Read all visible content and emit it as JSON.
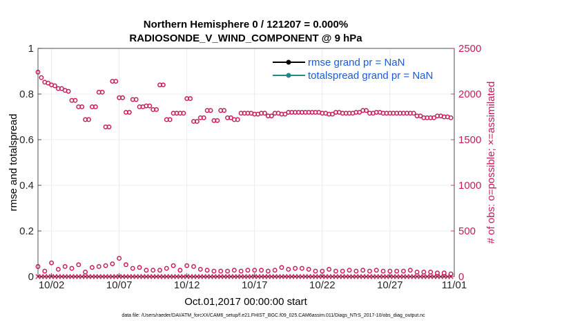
{
  "chart_data": {
    "type": "scatter",
    "title_line1": "Northern Hemisphere 0 / 121207 = 0.000%",
    "title_line2": "RADIOSONDE_V_WIND_COMPONENT @ 9 hPa",
    "ylabel_left": "rmse and totalspread",
    "ylabel_right": "# of obs: o=possible; ×=assimilated",
    "xlabel": "Oct.01,2017 00:00:00 start",
    "footnote": "data file: /Users/raeder/DAI/ATM_forcXX/CAM6_setup/f.e21.FHIST_BGC.f09_025.CAM6assim.011/Diags_NTrS_2017-10/obs_diag_output.nc",
    "ylim_left": [
      0,
      1
    ],
    "ylim_right": [
      0,
      2500
    ],
    "xlim_days": [
      0.5,
      31.25
    ],
    "left_ticks": [
      "0",
      "0.2",
      "0.4",
      "0.6",
      "0.8",
      "1"
    ],
    "left_tick_values": [
      0,
      0.2,
      0.4,
      0.6,
      0.8,
      1
    ],
    "right_ticks": [
      "0",
      "500",
      "1000",
      "1500",
      "2000",
      "2500"
    ],
    "right_tick_values": [
      0,
      500,
      1000,
      1500,
      2000,
      2500
    ],
    "x_ticks": [
      "10/02",
      "10/07",
      "10/12",
      "10/17",
      "10/22",
      "10/27",
      "11/01"
    ],
    "x_tick_days": [
      1.5,
      6.5,
      11.5,
      16.5,
      21.5,
      26.5,
      31.5
    ],
    "legend": [
      {
        "label": "rmse grand pr = NaN",
        "color": "#000000"
      },
      {
        "label": "totalspread grand pr = NaN",
        "color": "#1a8a8a"
      }
    ],
    "series": [
      {
        "name": "possible (large counts)",
        "marker": "circle",
        "color": "#c8195a",
        "x": [
          0.5,
          0.75,
          1.0,
          1.25,
          1.5,
          1.75,
          2.0,
          2.25,
          2.5,
          2.75,
          3.0,
          3.25,
          3.5,
          3.75,
          4.0,
          4.25,
          4.5,
          4.75,
          5.0,
          5.25,
          5.5,
          5.75,
          6.0,
          6.25,
          6.5,
          6.75,
          7.0,
          7.25,
          7.5,
          7.75,
          8.0,
          8.25,
          8.5,
          8.75,
          9.0,
          9.25,
          9.5,
          9.75,
          10.0,
          10.25,
          10.5,
          10.75,
          11.0,
          11.25,
          11.5,
          11.75,
          12.0,
          12.25,
          12.5,
          12.75,
          13.0,
          13.25,
          13.5,
          13.75,
          14.0,
          14.25,
          14.5,
          14.75,
          15.0,
          15.25,
          15.5,
          15.75,
          16.0,
          16.25,
          16.5,
          16.75,
          17.0,
          17.25,
          17.5,
          17.75,
          18.0,
          18.25,
          18.5,
          18.75,
          19.0,
          19.25,
          19.5,
          19.75,
          20.0,
          20.25,
          20.5,
          20.75,
          21.0,
          21.25,
          21.5,
          21.75,
          22.0,
          22.25,
          22.5,
          22.75,
          23.0,
          23.25,
          23.5,
          23.75,
          24.0,
          24.25,
          24.5,
          24.75,
          25.0,
          25.25,
          25.5,
          25.75,
          26.0,
          26.25,
          26.5,
          26.75,
          27.0,
          27.25,
          27.5,
          27.75,
          28.0,
          28.25,
          28.5,
          28.75,
          29.0,
          29.25,
          29.5,
          29.75,
          30.0,
          30.25,
          30.5,
          30.75,
          31.0
        ],
        "values": [
          2240,
          2180,
          2130,
          2120,
          2100,
          2090,
          2060,
          2060,
          2040,
          2030,
          1930,
          1930,
          1860,
          1860,
          1720,
          1720,
          1860,
          1860,
          2020,
          2020,
          1640,
          1640,
          2140,
          2140,
          1960,
          1960,
          1800,
          1800,
          1940,
          1940,
          1860,
          1860,
          1870,
          1870,
          1830,
          1830,
          2100,
          2100,
          1720,
          1720,
          1790,
          1790,
          1790,
          1790,
          1950,
          1950,
          1700,
          1700,
          1740,
          1740,
          1820,
          1820,
          1710,
          1710,
          1820,
          1820,
          1740,
          1740,
          1720,
          1720,
          1790,
          1790,
          1790,
          1790,
          1780,
          1780,
          1790,
          1790,
          1760,
          1760,
          1790,
          1790,
          1780,
          1780,
          1800,
          1800,
          1800,
          1800,
          1800,
          1800,
          1800,
          1800,
          1800,
          1800,
          1790,
          1790,
          1780,
          1780,
          1800,
          1800,
          1790,
          1790,
          1790,
          1790,
          1800,
          1800,
          1820,
          1820,
          1790,
          1790,
          1800,
          1800,
          1790,
          1790,
          1790,
          1790,
          1790,
          1790,
          1790,
          1790,
          1790,
          1790,
          1760,
          1760,
          1740,
          1740,
          1740,
          1740,
          1760,
          1760,
          1750,
          1750,
          1740
        ]
      },
      {
        "name": "possible (small counts)",
        "marker": "circle",
        "color": "#c8195a",
        "x": [
          0.5,
          1.0,
          1.5,
          2.0,
          2.5,
          3.0,
          3.5,
          4.0,
          4.5,
          5.0,
          5.5,
          6.0,
          6.5,
          7.0,
          7.5,
          8.0,
          8.5,
          9.0,
          9.5,
          10.0,
          10.5,
          11.0,
          11.5,
          12.0,
          12.5,
          13.0,
          13.5,
          14.0,
          14.5,
          15.0,
          15.5,
          16.0,
          16.5,
          17.0,
          17.5,
          18.0,
          18.5,
          19.0,
          19.5,
          20.0,
          20.5,
          21.0,
          21.5,
          22.0,
          22.5,
          23.0,
          23.5,
          24.0,
          24.5,
          25.0,
          25.5,
          26.0,
          26.5,
          27.0,
          27.5,
          28.0,
          28.5,
          29.0,
          29.5,
          30.0,
          30.5,
          31.0
        ],
        "values": [
          110,
          60,
          150,
          80,
          110,
          90,
          130,
          50,
          100,
          110,
          120,
          140,
          200,
          130,
          90,
          100,
          70,
          70,
          70,
          90,
          120,
          70,
          120,
          110,
          80,
          70,
          60,
          60,
          60,
          70,
          60,
          70,
          70,
          70,
          60,
          70,
          100,
          80,
          90,
          90,
          80,
          60,
          60,
          80,
          60,
          60,
          70,
          60,
          70,
          60,
          70,
          60,
          60,
          60,
          60,
          70,
          50,
          50,
          50,
          40,
          40,
          30
        ]
      },
      {
        "name": "assimilated",
        "marker": "cross",
        "color": "#c8195a",
        "x": [
          0.5,
          0.75,
          1.0,
          1.25,
          1.5,
          1.75,
          2.0,
          2.25,
          2.5,
          2.75,
          3.0,
          3.25,
          3.5,
          3.75,
          4.0,
          4.25,
          4.5,
          4.75,
          5.0,
          5.25,
          5.5,
          5.75,
          6.0,
          6.25,
          6.5,
          6.75,
          7.0,
          7.25,
          7.5,
          7.75,
          8.0,
          8.25,
          8.5,
          8.75,
          9.0,
          9.25,
          9.5,
          9.75,
          10.0,
          10.25,
          10.5,
          10.75,
          11.0,
          11.25,
          11.5,
          11.75,
          12.0,
          12.25,
          12.5,
          12.75,
          13.0,
          13.25,
          13.5,
          13.75,
          14.0,
          14.25,
          14.5,
          14.75,
          15.0,
          15.25,
          15.5,
          15.75,
          16.0,
          16.25,
          16.5,
          16.75,
          17.0,
          17.25,
          17.5,
          17.75,
          18.0,
          18.25,
          18.5,
          18.75,
          19.0,
          19.25,
          19.5,
          19.75,
          20.0,
          20.25,
          20.5,
          20.75,
          21.0,
          21.25,
          21.5,
          21.75,
          22.0,
          22.25,
          22.5,
          22.75,
          23.0,
          23.25,
          23.5,
          23.75,
          24.0,
          24.25,
          24.5,
          24.75,
          25.0,
          25.25,
          25.5,
          25.75,
          26.0,
          26.25,
          26.5,
          26.75,
          27.0,
          27.25,
          27.5,
          27.75,
          28.0,
          28.25,
          28.5,
          28.75,
          29.0,
          29.25,
          29.5,
          29.75,
          30.0,
          30.25,
          30.5,
          30.75,
          31.0
        ],
        "values": [
          0,
          0,
          0,
          0,
          0,
          0,
          0,
          0,
          0,
          0,
          0,
          0,
          0,
          0,
          0,
          0,
          0,
          0,
          0,
          0,
          0,
          0,
          0,
          0,
          0,
          0,
          0,
          0,
          0,
          0,
          0,
          0,
          0,
          0,
          0,
          0,
          0,
          0,
          0,
          0,
          0,
          0,
          0,
          0,
          0,
          0,
          0,
          0,
          0,
          0,
          0,
          0,
          0,
          0,
          0,
          0,
          0,
          0,
          0,
          0,
          0,
          0,
          0,
          0,
          0,
          0,
          0,
          0,
          0,
          0,
          0,
          0,
          0,
          0,
          0,
          0,
          0,
          0,
          0,
          0,
          0,
          0,
          0,
          0,
          0,
          0,
          0,
          0,
          0,
          0,
          0,
          0,
          0,
          0,
          0,
          0,
          0,
          0,
          0,
          0,
          0,
          0,
          0,
          0,
          0,
          0,
          0,
          0,
          0,
          0,
          0,
          0,
          0,
          0,
          0,
          0,
          0,
          0,
          0,
          0,
          0,
          0,
          0
        ]
      }
    ],
    "colors": {
      "right_axis": "#c8195a",
      "grid": "#e6e6e6",
      "legend_text": "#1a5bd6",
      "rmse_line": "#000000",
      "spread_line": "#1a8a8a"
    }
  }
}
